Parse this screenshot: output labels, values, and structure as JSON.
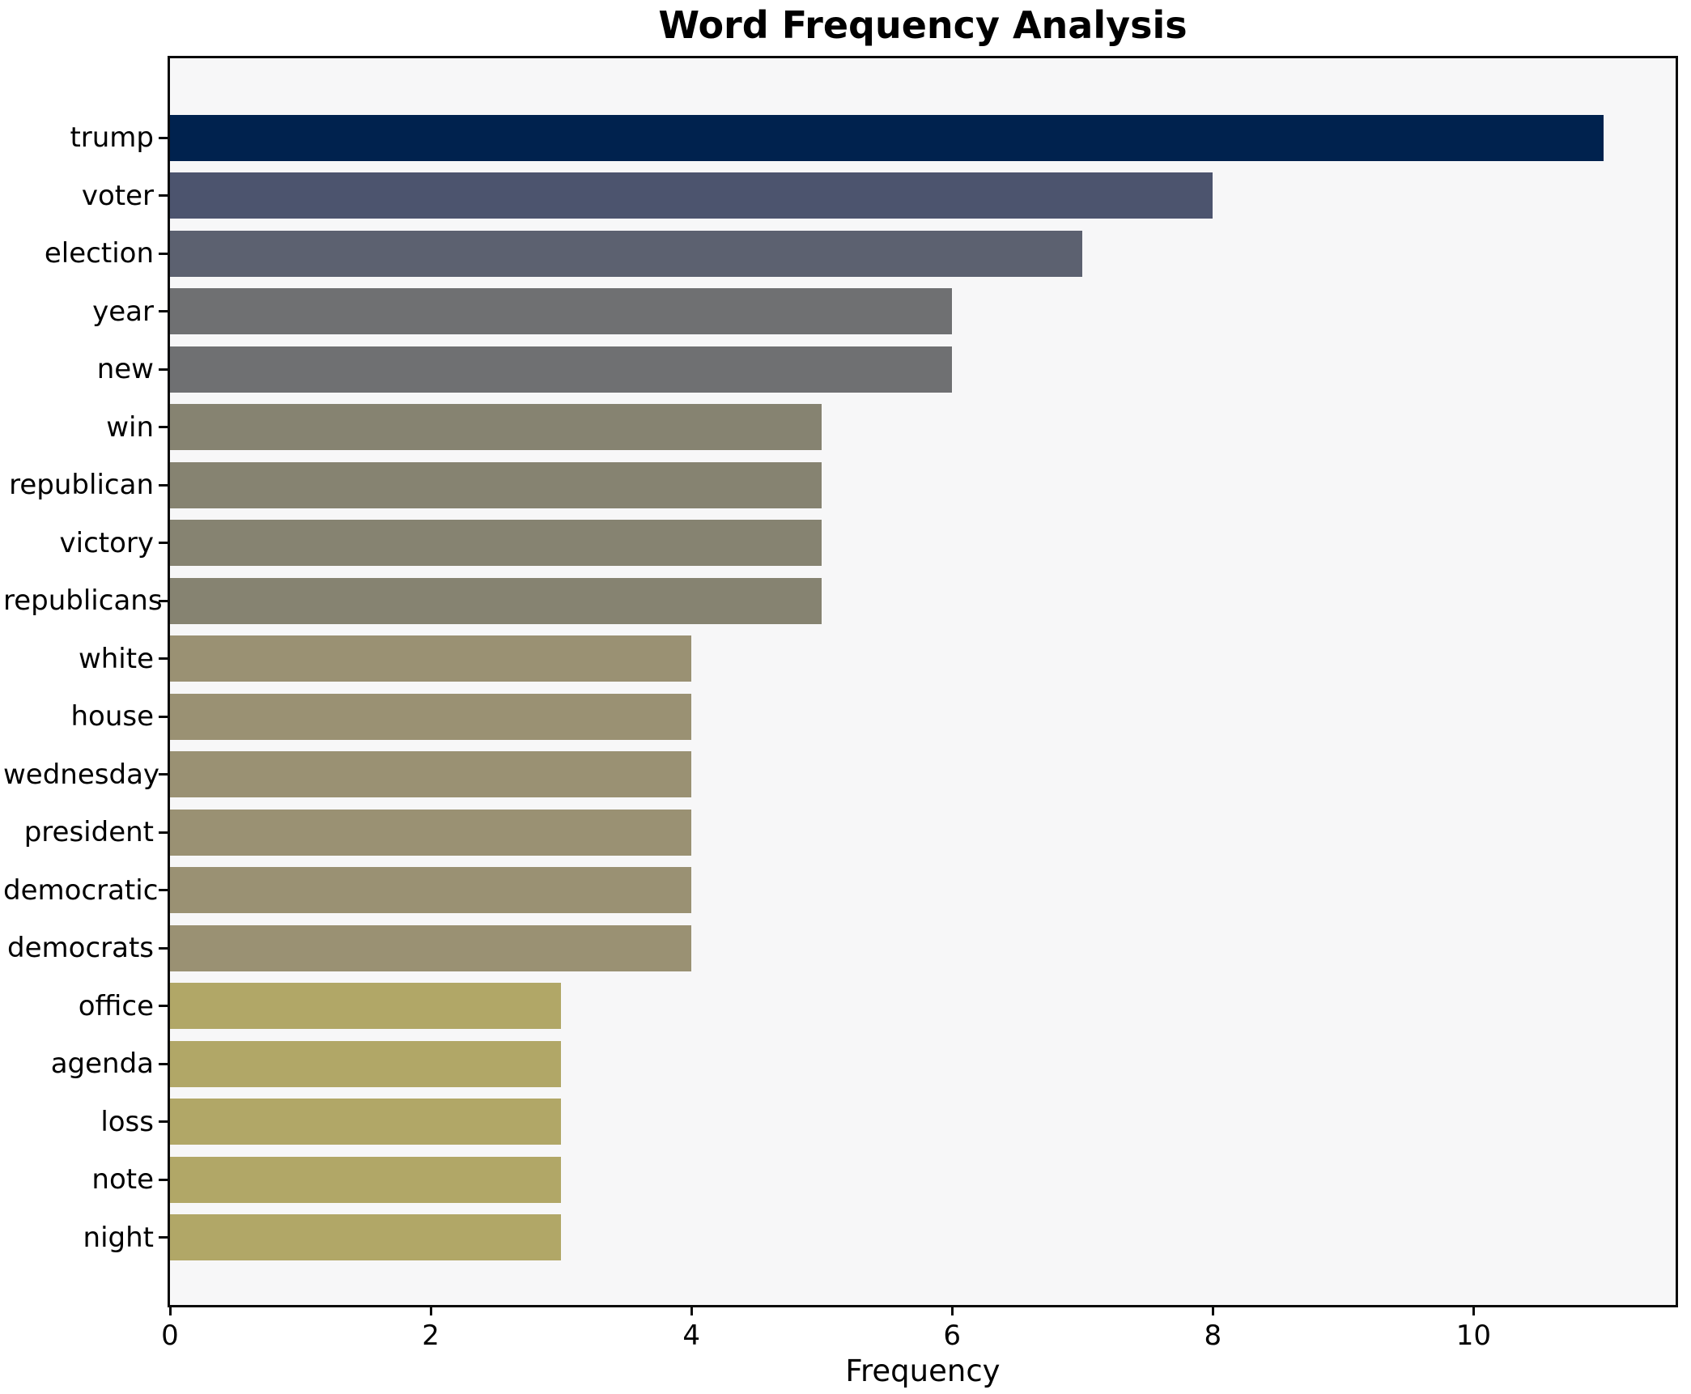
{
  "chart_data": {
    "type": "bar",
    "orientation": "horizontal",
    "title": "Word Frequency Analysis",
    "xlabel": "Frequency",
    "ylabel": "",
    "categories": [
      "trump",
      "voter",
      "election",
      "year",
      "new",
      "win",
      "republican",
      "victory",
      "republicans",
      "white",
      "house",
      "wednesday",
      "president",
      "democratic",
      "democrats",
      "office",
      "agenda",
      "loss",
      "note",
      "night"
    ],
    "values": [
      11,
      8,
      7,
      6,
      6,
      5,
      5,
      5,
      5,
      4,
      4,
      4,
      4,
      4,
      4,
      3,
      3,
      3,
      3,
      3
    ],
    "bar_colors": [
      "#00224e",
      "#4c546e",
      "#5c6170",
      "#6f7072",
      "#6f7072",
      "#868371",
      "#868371",
      "#868371",
      "#868371",
      "#9a9173",
      "#9a9173",
      "#9a9173",
      "#9a9173",
      "#9a9173",
      "#9a9173",
      "#b1a767",
      "#b1a767",
      "#b1a767",
      "#b1a767",
      "#b1a767"
    ],
    "xlim": [
      0,
      11.55
    ],
    "xticks": [
      0,
      2,
      4,
      6,
      8,
      10
    ],
    "xtick_labels": [
      "0",
      "2",
      "4",
      "6",
      "8",
      "10"
    ],
    "grid": false,
    "legend": null,
    "plot_background": "#f7f7f8",
    "figure_background": "#ffffff",
    "spine_color": "#0a0a0a"
  }
}
